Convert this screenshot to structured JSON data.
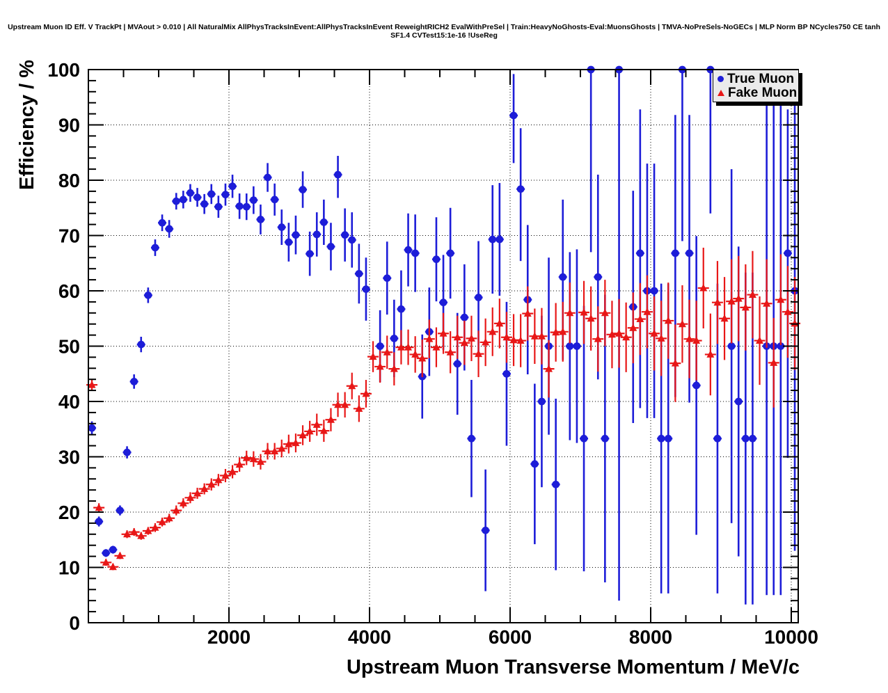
{
  "title": "Upstream Muon ID Eff. V TrackPt | MVAout > 0.010 | All NaturalMix AllPhysTracksInEvent:AllPhysTracksInEvent ReweightRICH2 EvalWithPreSel | Train:HeavyNoGhosts-Eval:MuonsGhosts | TMVA-NoPreSels-NoGECs | MLP Norm BP NCycles750 CE tanh SF1.4 CVTest15:1e-16 !UseReg",
  "legend": {
    "items": [
      {
        "label": "True Muon",
        "color": "#1d1dd8",
        "marker": "circle"
      },
      {
        "label": "Fake Muon",
        "color": "#e81717",
        "marker": "triangle"
      }
    ]
  },
  "chart_data": {
    "type": "scatter",
    "title": "Upstream Muon ID Eff. V TrackPt",
    "xlabel": "Upstream Muon Transverse Momentum / MeV/c",
    "ylabel": "Efficiency / %",
    "xlim": [
      0,
      10100
    ],
    "ylim": [
      0,
      100
    ],
    "x_ticks": [
      2000,
      4000,
      6000,
      8000,
      10000
    ],
    "y_ticks": [
      0,
      10,
      20,
      30,
      40,
      50,
      60,
      70,
      80,
      90,
      100
    ],
    "x_minor_step": 500,
    "y_minor_step": 2,
    "grid": "dotted",
    "legend_position": "top-right",
    "series": [
      {
        "name": "True Muon",
        "marker": "circle",
        "color": "#1d1dd8",
        "points": [
          [
            50,
            35.2,
            1.2
          ],
          [
            150,
            18.3,
            0.9
          ],
          [
            250,
            12.6,
            0.7
          ],
          [
            350,
            13.2,
            0.7
          ],
          [
            450,
            20.3,
            0.9
          ],
          [
            550,
            30.8,
            1.1
          ],
          [
            650,
            43.6,
            1.3
          ],
          [
            750,
            50.3,
            1.4
          ],
          [
            850,
            59.2,
            1.4
          ],
          [
            950,
            67.8,
            1.5
          ],
          [
            1050,
            72.3,
            1.5
          ],
          [
            1150,
            71.2,
            1.6
          ],
          [
            1250,
            76.2,
            1.5
          ],
          [
            1350,
            76.5,
            1.6
          ],
          [
            1450,
            77.7,
            1.6
          ],
          [
            1550,
            76.9,
            1.7
          ],
          [
            1650,
            75.7,
            1.8
          ],
          [
            1750,
            77.5,
            1.8
          ],
          [
            1850,
            75.2,
            2.0
          ],
          [
            1950,
            77.4,
            2.0
          ],
          [
            2050,
            78.9,
            2.1
          ],
          [
            2150,
            75.3,
            2.3
          ],
          [
            2250,
            75.2,
            2.4
          ],
          [
            2350,
            76.4,
            2.5
          ],
          [
            2450,
            72.9,
            2.7
          ],
          [
            2550,
            80.5,
            2.6
          ],
          [
            2650,
            76.5,
            2.9
          ],
          [
            2750,
            71.5,
            3.2
          ],
          [
            2850,
            68.8,
            3.5
          ],
          [
            2950,
            70.1,
            3.5
          ],
          [
            3050,
            78.3,
            3.3
          ],
          [
            3150,
            66.7,
            4.0
          ],
          [
            3250,
            70.2,
            4.0
          ],
          [
            3350,
            72.4,
            4.1
          ],
          [
            3450,
            68.0,
            4.3
          ],
          [
            3550,
            81.0,
            4.2,
            3.4
          ],
          [
            3650,
            70.1,
            4.8
          ],
          [
            3750,
            69.2,
            5.0
          ],
          [
            3850,
            63.1,
            5.4
          ],
          [
            3950,
            60.3,
            5.7
          ],
          [
            4150,
            50.0,
            6.5
          ],
          [
            4250,
            62.3,
            6.6
          ],
          [
            4350,
            51.4,
            7.0
          ],
          [
            4450,
            56.7,
            7.0
          ],
          [
            4550,
            67.4,
            6.6
          ],
          [
            4650,
            66.8,
            7.0
          ],
          [
            4750,
            44.5,
            7.6
          ],
          [
            4850,
            52.6,
            8.0
          ],
          [
            4950,
            65.7,
            7.6
          ],
          [
            5050,
            57.9,
            8.6
          ],
          [
            5150,
            66.8,
            8.2
          ],
          [
            5250,
            46.8,
            9.2
          ],
          [
            5350,
            55.2,
            9.6
          ],
          [
            5450,
            33.3,
            10.6
          ],
          [
            5550,
            58.8,
            10.2
          ],
          [
            5650,
            16.7,
            11.0
          ],
          [
            5750,
            69.3,
            9.8
          ],
          [
            5850,
            69.3,
            10.2
          ],
          [
            5950,
            45.0,
            13.0
          ],
          [
            6050,
            91.7,
            8.6,
            7.5
          ],
          [
            6150,
            78.4,
            13.0,
            11.0
          ],
          [
            6250,
            58.4,
            13.5
          ],
          [
            6350,
            28.7,
            14.5
          ],
          [
            6450,
            40.0,
            15.5
          ],
          [
            6550,
            50.0,
            16.0
          ],
          [
            6650,
            25.0,
            15.5
          ],
          [
            6750,
            62.5,
            15.0,
            14.0
          ],
          [
            6850,
            50.0,
            17.0
          ],
          [
            6950,
            50.0,
            17.5
          ],
          [
            7050,
            33.3,
            24.0
          ],
          [
            7150,
            100,
            33,
            0
          ],
          [
            7250,
            62.5,
            18.5
          ],
          [
            7350,
            33.3,
            26.0
          ],
          [
            7550,
            100,
            96,
            0
          ],
          [
            7750,
            57.1,
            21.0
          ],
          [
            7850,
            66.8,
            28.0,
            26.0
          ],
          [
            7950,
            60.0,
            23.0
          ],
          [
            8050,
            60.0,
            23.0
          ],
          [
            8150,
            33.3,
            28.0
          ],
          [
            8250,
            33.3,
            28.0
          ],
          [
            8350,
            66.8,
            26.0,
            25.0
          ],
          [
            8450,
            100,
            31,
            0
          ],
          [
            8550,
            66.8,
            27.0,
            25.0
          ],
          [
            8650,
            42.9,
            27.0
          ],
          [
            8850,
            100,
            26,
            0
          ],
          [
            8950,
            33.3,
            28.0
          ],
          [
            9150,
            50.0,
            32.0
          ],
          [
            9250,
            40.0,
            28.0
          ],
          [
            9350,
            33.3,
            30.0
          ],
          [
            9450,
            33.3,
            30.0
          ],
          [
            9650,
            50.0,
            45.0
          ],
          [
            9750,
            50.0,
            45.0
          ],
          [
            9850,
            50.0,
            45.0
          ],
          [
            9950,
            66.8,
            37.0,
            26.0
          ],
          [
            10050,
            60.0,
            47.0,
            37.0
          ]
        ]
      },
      {
        "name": "Fake Muon",
        "marker": "triangle",
        "color": "#e81717",
        "points": [
          [
            50,
            43.0,
            1.0
          ],
          [
            150,
            20.8,
            0.8
          ],
          [
            250,
            10.9,
            0.6
          ],
          [
            350,
            10.1,
            0.6
          ],
          [
            450,
            12.1,
            0.6
          ],
          [
            550,
            16.0,
            0.7
          ],
          [
            650,
            16.4,
            0.7
          ],
          [
            750,
            15.7,
            0.7
          ],
          [
            850,
            16.6,
            0.7
          ],
          [
            950,
            17.2,
            0.8
          ],
          [
            1050,
            18.2,
            0.8
          ],
          [
            1150,
            18.9,
            0.8
          ],
          [
            1250,
            20.3,
            0.9
          ],
          [
            1350,
            21.6,
            0.9
          ],
          [
            1450,
            22.6,
            1.0
          ],
          [
            1550,
            23.4,
            1.0
          ],
          [
            1650,
            24.2,
            1.0
          ],
          [
            1750,
            25.0,
            1.1
          ],
          [
            1850,
            25.8,
            1.1
          ],
          [
            1950,
            26.6,
            1.2
          ],
          [
            2050,
            27.3,
            1.2
          ],
          [
            2150,
            28.6,
            1.3
          ],
          [
            2250,
            29.8,
            1.3
          ],
          [
            2350,
            29.6,
            1.4
          ],
          [
            2450,
            29.1,
            1.4
          ],
          [
            2550,
            31.0,
            1.5
          ],
          [
            2650,
            31.0,
            1.5
          ],
          [
            2750,
            31.5,
            1.6
          ],
          [
            2850,
            32.3,
            1.7
          ],
          [
            2950,
            32.5,
            1.7
          ],
          [
            3050,
            33.9,
            1.8
          ],
          [
            3150,
            34.6,
            1.9
          ],
          [
            3250,
            35.8,
            2.0
          ],
          [
            3350,
            34.7,
            2.0
          ],
          [
            3450,
            36.7,
            2.1
          ],
          [
            3550,
            39.4,
            2.2
          ],
          [
            3650,
            39.4,
            2.3
          ],
          [
            3750,
            42.8,
            2.4
          ],
          [
            3850,
            38.7,
            2.4
          ],
          [
            3950,
            41.4,
            2.5
          ],
          [
            4050,
            48.1,
            2.8
          ],
          [
            4150,
            46.3,
            2.9
          ],
          [
            4250,
            48.9,
            3.0
          ],
          [
            4350,
            45.9,
            3.0
          ],
          [
            4450,
            49.8,
            3.1
          ],
          [
            4550,
            49.8,
            3.2
          ],
          [
            4650,
            48.5,
            3.3
          ],
          [
            4750,
            47.8,
            3.4
          ],
          [
            4850,
            51.3,
            3.5
          ],
          [
            4950,
            49.8,
            3.6
          ],
          [
            5050,
            52.3,
            3.7
          ],
          [
            5150,
            48.9,
            3.8
          ],
          [
            5250,
            51.6,
            3.9
          ],
          [
            5350,
            50.6,
            4.0
          ],
          [
            5450,
            51.4,
            4.1
          ],
          [
            5550,
            48.6,
            4.2
          ],
          [
            5650,
            50.7,
            4.3
          ],
          [
            5750,
            52.6,
            4.4
          ],
          [
            5850,
            54.1,
            4.5
          ],
          [
            5950,
            51.6,
            4.6
          ],
          [
            6050,
            51.1,
            4.7
          ],
          [
            6150,
            51.0,
            4.8
          ],
          [
            6250,
            55.9,
            4.9
          ],
          [
            6350,
            51.8,
            5.0
          ],
          [
            6450,
            51.8,
            5.1
          ],
          [
            6550,
            45.9,
            5.2
          ],
          [
            6650,
            52.5,
            5.3
          ],
          [
            6750,
            52.6,
            5.4
          ],
          [
            6850,
            56.0,
            5.5
          ],
          [
            7050,
            56.1,
            5.7
          ],
          [
            7150,
            55.0,
            5.8
          ],
          [
            7250,
            51.3,
            5.9
          ],
          [
            7350,
            56.0,
            6.0
          ],
          [
            7450,
            52.1,
            6.1
          ],
          [
            7550,
            52.3,
            6.2
          ],
          [
            7650,
            51.6,
            6.3
          ],
          [
            7750,
            53.3,
            6.4
          ],
          [
            7850,
            54.9,
            6.5
          ],
          [
            7950,
            56.2,
            6.6
          ],
          [
            8050,
            52.3,
            6.7
          ],
          [
            8150,
            51.4,
            6.8
          ],
          [
            8250,
            54.6,
            6.9
          ],
          [
            8350,
            46.9,
            7.0
          ],
          [
            8450,
            54.0,
            7.0
          ],
          [
            8550,
            51.3,
            7.1
          ],
          [
            8650,
            51.0,
            7.2
          ],
          [
            8750,
            60.5,
            7.3
          ],
          [
            8850,
            48.5,
            7.4
          ],
          [
            8950,
            57.9,
            7.5
          ],
          [
            9050,
            55.0,
            7.5
          ],
          [
            9150,
            58.1,
            7.6
          ],
          [
            9250,
            58.6,
            7.7
          ],
          [
            9350,
            57.0,
            7.8
          ],
          [
            9450,
            59.3,
            7.9
          ],
          [
            9550,
            51.0,
            8.0
          ],
          [
            9650,
            57.7,
            8.0
          ],
          [
            9750,
            47.0,
            8.1
          ],
          [
            9850,
            58.4,
            8.2
          ],
          [
            9950,
            56.2,
            8.3
          ],
          [
            10050,
            54.1,
            8.4
          ]
        ]
      }
    ]
  }
}
